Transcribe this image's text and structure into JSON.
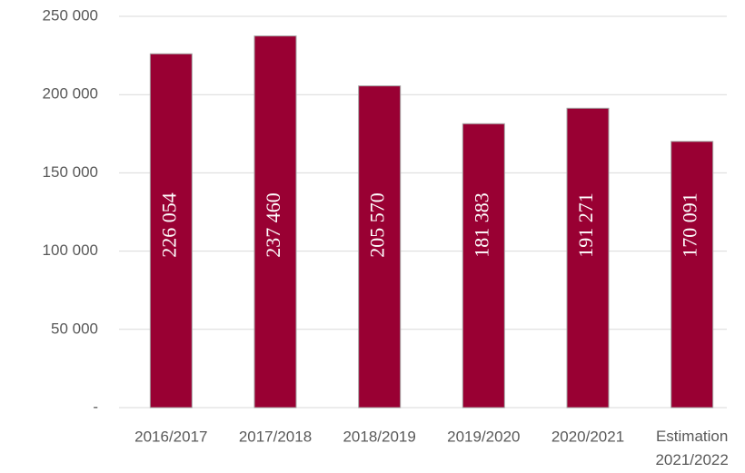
{
  "chart_data": {
    "type": "bar",
    "categories": [
      "2016/2017",
      "2017/2018",
      "2018/2019",
      "2019/2020",
      "2020/2021",
      "Estimation 2021/2022"
    ],
    "values": [
      226054,
      237460,
      205570,
      181383,
      191271,
      170091
    ],
    "value_labels": [
      "226 054",
      "237 460",
      "205 570",
      "181 383",
      "191 271",
      "170 091"
    ],
    "color": "#990033",
    "ylim": [
      0,
      250000
    ],
    "yticks": [
      {
        "value": 0,
        "label": "-"
      },
      {
        "value": 50000,
        "label": "50 000"
      },
      {
        "value": 100000,
        "label": "100 000"
      },
      {
        "value": 150000,
        "label": "150 000"
      },
      {
        "value": 200000,
        "label": "200 000"
      },
      {
        "value": 250000,
        "label": "250 000"
      }
    ],
    "grid": true
  }
}
